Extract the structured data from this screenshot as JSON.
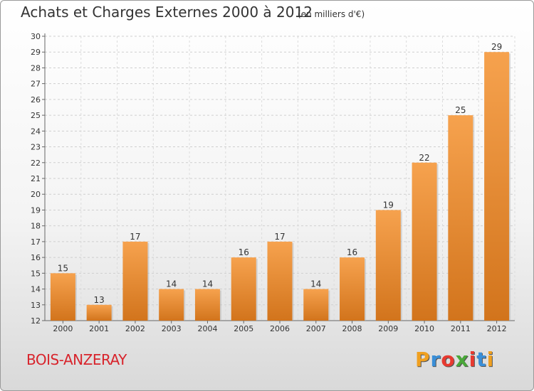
{
  "header": {
    "title": "Achats et Charges Externes 2000 à 2012",
    "subtitle": "(en milliers d'€)"
  },
  "footer": {
    "location": "BOIS-ANZERAY"
  },
  "logo": {
    "letters": [
      "P",
      "r",
      "o",
      "x",
      "i",
      "t",
      "i"
    ],
    "colors": [
      "#f0a020",
      "#3a8fd8",
      "#e83a30",
      "#4aa83a",
      "#e83a30",
      "#3a8fd8",
      "#f0a020"
    ]
  },
  "chart_data": {
    "type": "bar",
    "categories": [
      "2000",
      "2001",
      "2002",
      "2003",
      "2004",
      "2005",
      "2006",
      "2007",
      "2008",
      "2009",
      "2010",
      "2011",
      "2012"
    ],
    "values": [
      15,
      13,
      17,
      14,
      14,
      16,
      17,
      14,
      16,
      19,
      22,
      25,
      29
    ],
    "title": "Achats et Charges Externes 2000 à 2012",
    "ylim": [
      12,
      30
    ],
    "yticks": [
      12,
      13,
      14,
      15,
      16,
      17,
      18,
      19,
      20,
      21,
      22,
      23,
      24,
      25,
      26,
      27,
      28,
      29,
      30
    ],
    "grid": true,
    "bar_color_light": "#f6a24e",
    "bar_color_dark": "#d2741c"
  }
}
